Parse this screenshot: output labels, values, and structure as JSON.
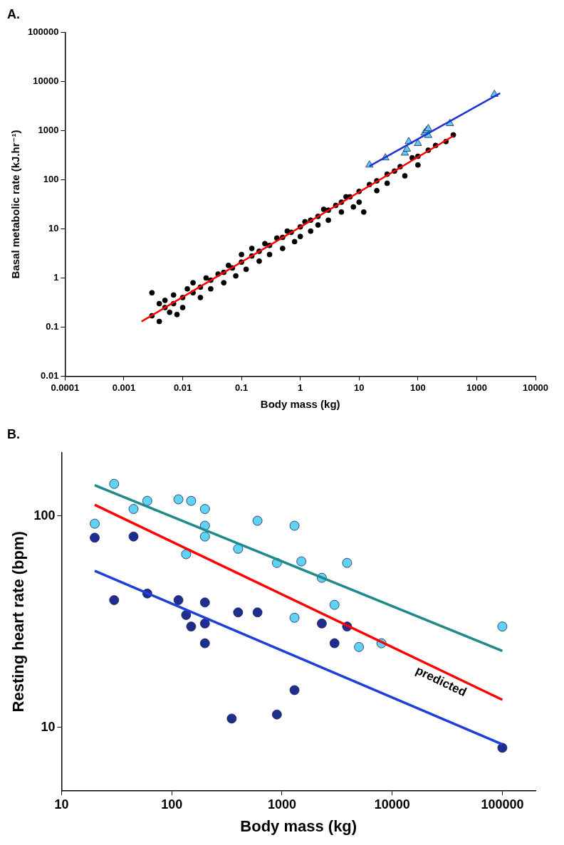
{
  "chart_data": [
    {
      "type": "scatter",
      "title": "A.",
      "xlabel": "Body mass (kg)",
      "ylabel": "Basal metabolic rate (kJ.hr⁻¹)",
      "log": true,
      "grid": false,
      "xlim": [
        0.0001,
        10000
      ],
      "xticks": [
        0.0001,
        0.001,
        0.01,
        0.1,
        1,
        10,
        100,
        1000,
        10000
      ],
      "ylim": [
        0.01,
        100000
      ],
      "yticks": [
        0.01,
        0.1,
        1,
        10,
        100,
        1000,
        10000,
        100000
      ],
      "series": [
        {
          "color": "#000000",
          "marker": "circle",
          "x": [
            0.003,
            0.003,
            0.004,
            0.004,
            0.005,
            0.005,
            0.006,
            0.007,
            0.007,
            0.008,
            0.01,
            0.01,
            0.012,
            0.015,
            0.015,
            0.02,
            0.02,
            0.025,
            0.03,
            0.03,
            0.04,
            0.05,
            0.05,
            0.06,
            0.07,
            0.08,
            0.1,
            0.1,
            0.12,
            0.15,
            0.15,
            0.2,
            0.2,
            0.25,
            0.3,
            0.3,
            0.4,
            0.5,
            0.5,
            0.6,
            0.7,
            0.8,
            1,
            1,
            1.2,
            1.5,
            1.5,
            2,
            2,
            2.5,
            3,
            3,
            4,
            5,
            5,
            6,
            7,
            8,
            10,
            10,
            12,
            15,
            20,
            20,
            30,
            30,
            40,
            50,
            60,
            80,
            100,
            100,
            150,
            200,
            300,
            400
          ],
          "values": [
            0.17,
            0.5,
            0.3,
            0.13,
            0.25,
            0.35,
            0.2,
            0.3,
            0.45,
            0.18,
            0.4,
            0.25,
            0.6,
            0.5,
            0.8,
            0.65,
            0.4,
            1.0,
            0.9,
            0.6,
            1.2,
            1.3,
            0.8,
            1.8,
            1.6,
            1.1,
            2.1,
            3.0,
            1.5,
            2.8,
            4.0,
            3.5,
            2.2,
            5.0,
            4.6,
            3.0,
            6.5,
            6.7,
            4.0,
            9.0,
            8.5,
            5.5,
            11,
            7,
            14,
            15,
            9,
            18,
            12,
            25,
            24,
            15,
            30,
            35,
            22,
            45,
            45,
            28,
            58,
            35,
            22,
            80,
            95,
            60,
            130,
            85,
            150,
            185,
            120,
            280,
            300,
            200,
            400,
            500,
            600,
            820
          ]
        },
        {
          "color": "#5ecbf5",
          "marker": "triangle",
          "x": [
            15,
            28,
            60,
            65,
            70,
            100,
            130,
            140,
            150,
            150,
            350,
            2000
          ],
          "values": [
            200,
            280,
            350,
            420,
            600,
            550,
            900,
            1000,
            1100,
            800,
            1400,
            5500
          ]
        },
        {
          "type": "line",
          "color": "#ff0000",
          "line_style": "solid",
          "x": [
            0.002,
            400
          ],
          "values": [
            0.13,
            780
          ]
        },
        {
          "type": "line",
          "color": "#1f32d6",
          "line_style": "solid",
          "x": [
            15,
            2500
          ],
          "values": [
            190,
            5800
          ]
        }
      ]
    },
    {
      "type": "scatter",
      "title": "B.",
      "xlabel": "Body mass (kg)",
      "ylabel": "Resting heart rate (bpm)",
      "log": true,
      "grid": false,
      "xlim": [
        10,
        200000
      ],
      "xticks": [
        10,
        100,
        1000,
        10000,
        100000
      ],
      "ylim": [
        5,
        200
      ],
      "yticks": [
        10,
        100
      ],
      "series": [
        {
          "color": "#5fd3f3",
          "marker": "circle",
          "x": [
            20,
            30,
            45,
            60,
            115,
            150,
            200,
            200,
            200,
            135,
            400,
            600,
            900,
            1300,
            1500,
            1300,
            2300,
            3000,
            3900,
            5000,
            8000,
            100000
          ],
          "values": [
            92,
            142,
            108,
            118,
            120,
            118,
            108,
            90,
            80,
            66,
            70,
            95,
            60,
            90,
            61,
            33,
            51,
            38,
            60,
            24,
            25,
            30
          ]
        },
        {
          "color": "#1f2d8f",
          "marker": "circle",
          "x": [
            20,
            30,
            45,
            60,
            115,
            135,
            150,
            200,
            200,
            200,
            350,
            400,
            600,
            900,
            1300,
            2300,
            3000,
            3900,
            100000
          ],
          "values": [
            79,
            40,
            80,
            43,
            40,
            34,
            30,
            39,
            31,
            25,
            11,
            35,
            35,
            11.5,
            15,
            31,
            25,
            30,
            8
          ]
        },
        {
          "type": "line",
          "color": "#1f8a8a",
          "line_style": "solid",
          "x": [
            20,
            100000
          ],
          "values": [
            140,
            23
          ]
        },
        {
          "type": "line",
          "name": "predicted",
          "color": "#ff0000",
          "line_style": "solid",
          "x": [
            20,
            100000
          ],
          "values": [
            113,
            13.5
          ]
        },
        {
          "type": "line",
          "color": "#1f3fd6",
          "line_style": "solid",
          "x": [
            20,
            100000
          ],
          "values": [
            55,
            8.3
          ]
        }
      ]
    }
  ]
}
